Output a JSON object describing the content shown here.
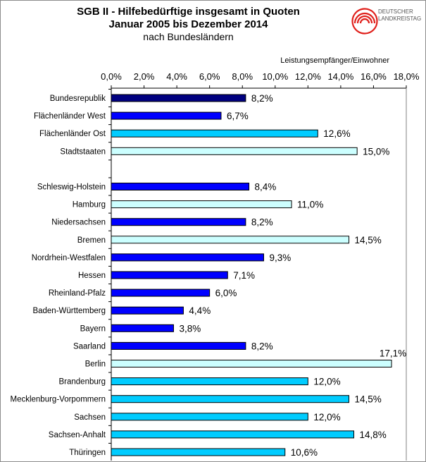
{
  "header": {
    "title_line1": "SGB II - Hilfebedürftige insgesamt in Quoten",
    "title_line2": "Januar 2005 bis Dezember 2014",
    "title_line3": "nach Bundesländern",
    "logo_text_line1": "DEUTSCHER",
    "logo_text_line2": "LANDKREISTAG",
    "logo_color": "#e0201b"
  },
  "chart_data": {
    "type": "bar",
    "orientation": "horizontal",
    "title": "SGB II - Hilfebedürftige insgesamt in Quoten Januar 2005 bis Dezember 2014 nach Bundesländern",
    "xlabel": "Leistungsempfänger/Einwohner",
    "ylabel": "",
    "xlim": [
      0,
      18
    ],
    "x_tick_step": 2,
    "x_ticks": [
      "0,0%",
      "2,0%",
      "4,0%",
      "6,0%",
      "8,0%",
      "10,0%",
      "12,0%",
      "14,0%",
      "16,0%",
      "18,0%"
    ],
    "x_axis_position": "top",
    "grid": false,
    "legend": "none",
    "group_colors": {
      "federal": "#000080",
      "west": "#0000ff",
      "east": "#00ccff",
      "city": "#ccffff"
    },
    "categories": [
      {
        "label": "Bundesrepublik",
        "value": 8.2,
        "value_label": "8,2%",
        "group": "federal"
      },
      {
        "label": "Flächenländer West",
        "value": 6.7,
        "value_label": "6,7%",
        "group": "west"
      },
      {
        "label": "Flächenländer Ost",
        "value": 12.6,
        "value_label": "12,6%",
        "group": "east"
      },
      {
        "label": "Stadtstaaten",
        "value": 15.0,
        "value_label": "15,0%",
        "group": "city"
      },
      {
        "label": "",
        "value": null,
        "value_label": "",
        "group": "spacer"
      },
      {
        "label": "Schleswig-Holstein",
        "value": 8.4,
        "value_label": "8,4%",
        "group": "west"
      },
      {
        "label": "Hamburg",
        "value": 11.0,
        "value_label": "11,0%",
        "group": "city"
      },
      {
        "label": "Niedersachsen",
        "value": 8.2,
        "value_label": "8,2%",
        "group": "west"
      },
      {
        "label": "Bremen",
        "value": 14.5,
        "value_label": "14,5%",
        "group": "city"
      },
      {
        "label": "Nordrhein-Westfalen",
        "value": 9.3,
        "value_label": "9,3%",
        "group": "west"
      },
      {
        "label": "Hessen",
        "value": 7.1,
        "value_label": "7,1%",
        "group": "west"
      },
      {
        "label": "Rheinland-Pfalz",
        "value": 6.0,
        "value_label": "6,0%",
        "group": "west"
      },
      {
        "label": "Baden-Württemberg",
        "value": 4.4,
        "value_label": "4,4%",
        "group": "west"
      },
      {
        "label": "Bayern",
        "value": 3.8,
        "value_label": "3,8%",
        "group": "west"
      },
      {
        "label": "Saarland",
        "value": 8.2,
        "value_label": "8,2%",
        "group": "west"
      },
      {
        "label": "Berlin",
        "value": 17.1,
        "value_label": "17,1%",
        "group": "city"
      },
      {
        "label": "Brandenburg",
        "value": 12.0,
        "value_label": "12,0%",
        "group": "east"
      },
      {
        "label": "Mecklenburg-Vorpommern",
        "value": 14.5,
        "value_label": "14,5%",
        "group": "east"
      },
      {
        "label": "Sachsen",
        "value": 12.0,
        "value_label": "12,0%",
        "group": "east"
      },
      {
        "label": "Sachsen-Anhalt",
        "value": 14.8,
        "value_label": "14,8%",
        "group": "east"
      },
      {
        "label": "Thüringen",
        "value": 10.6,
        "value_label": "10,6%",
        "group": "east"
      }
    ]
  }
}
